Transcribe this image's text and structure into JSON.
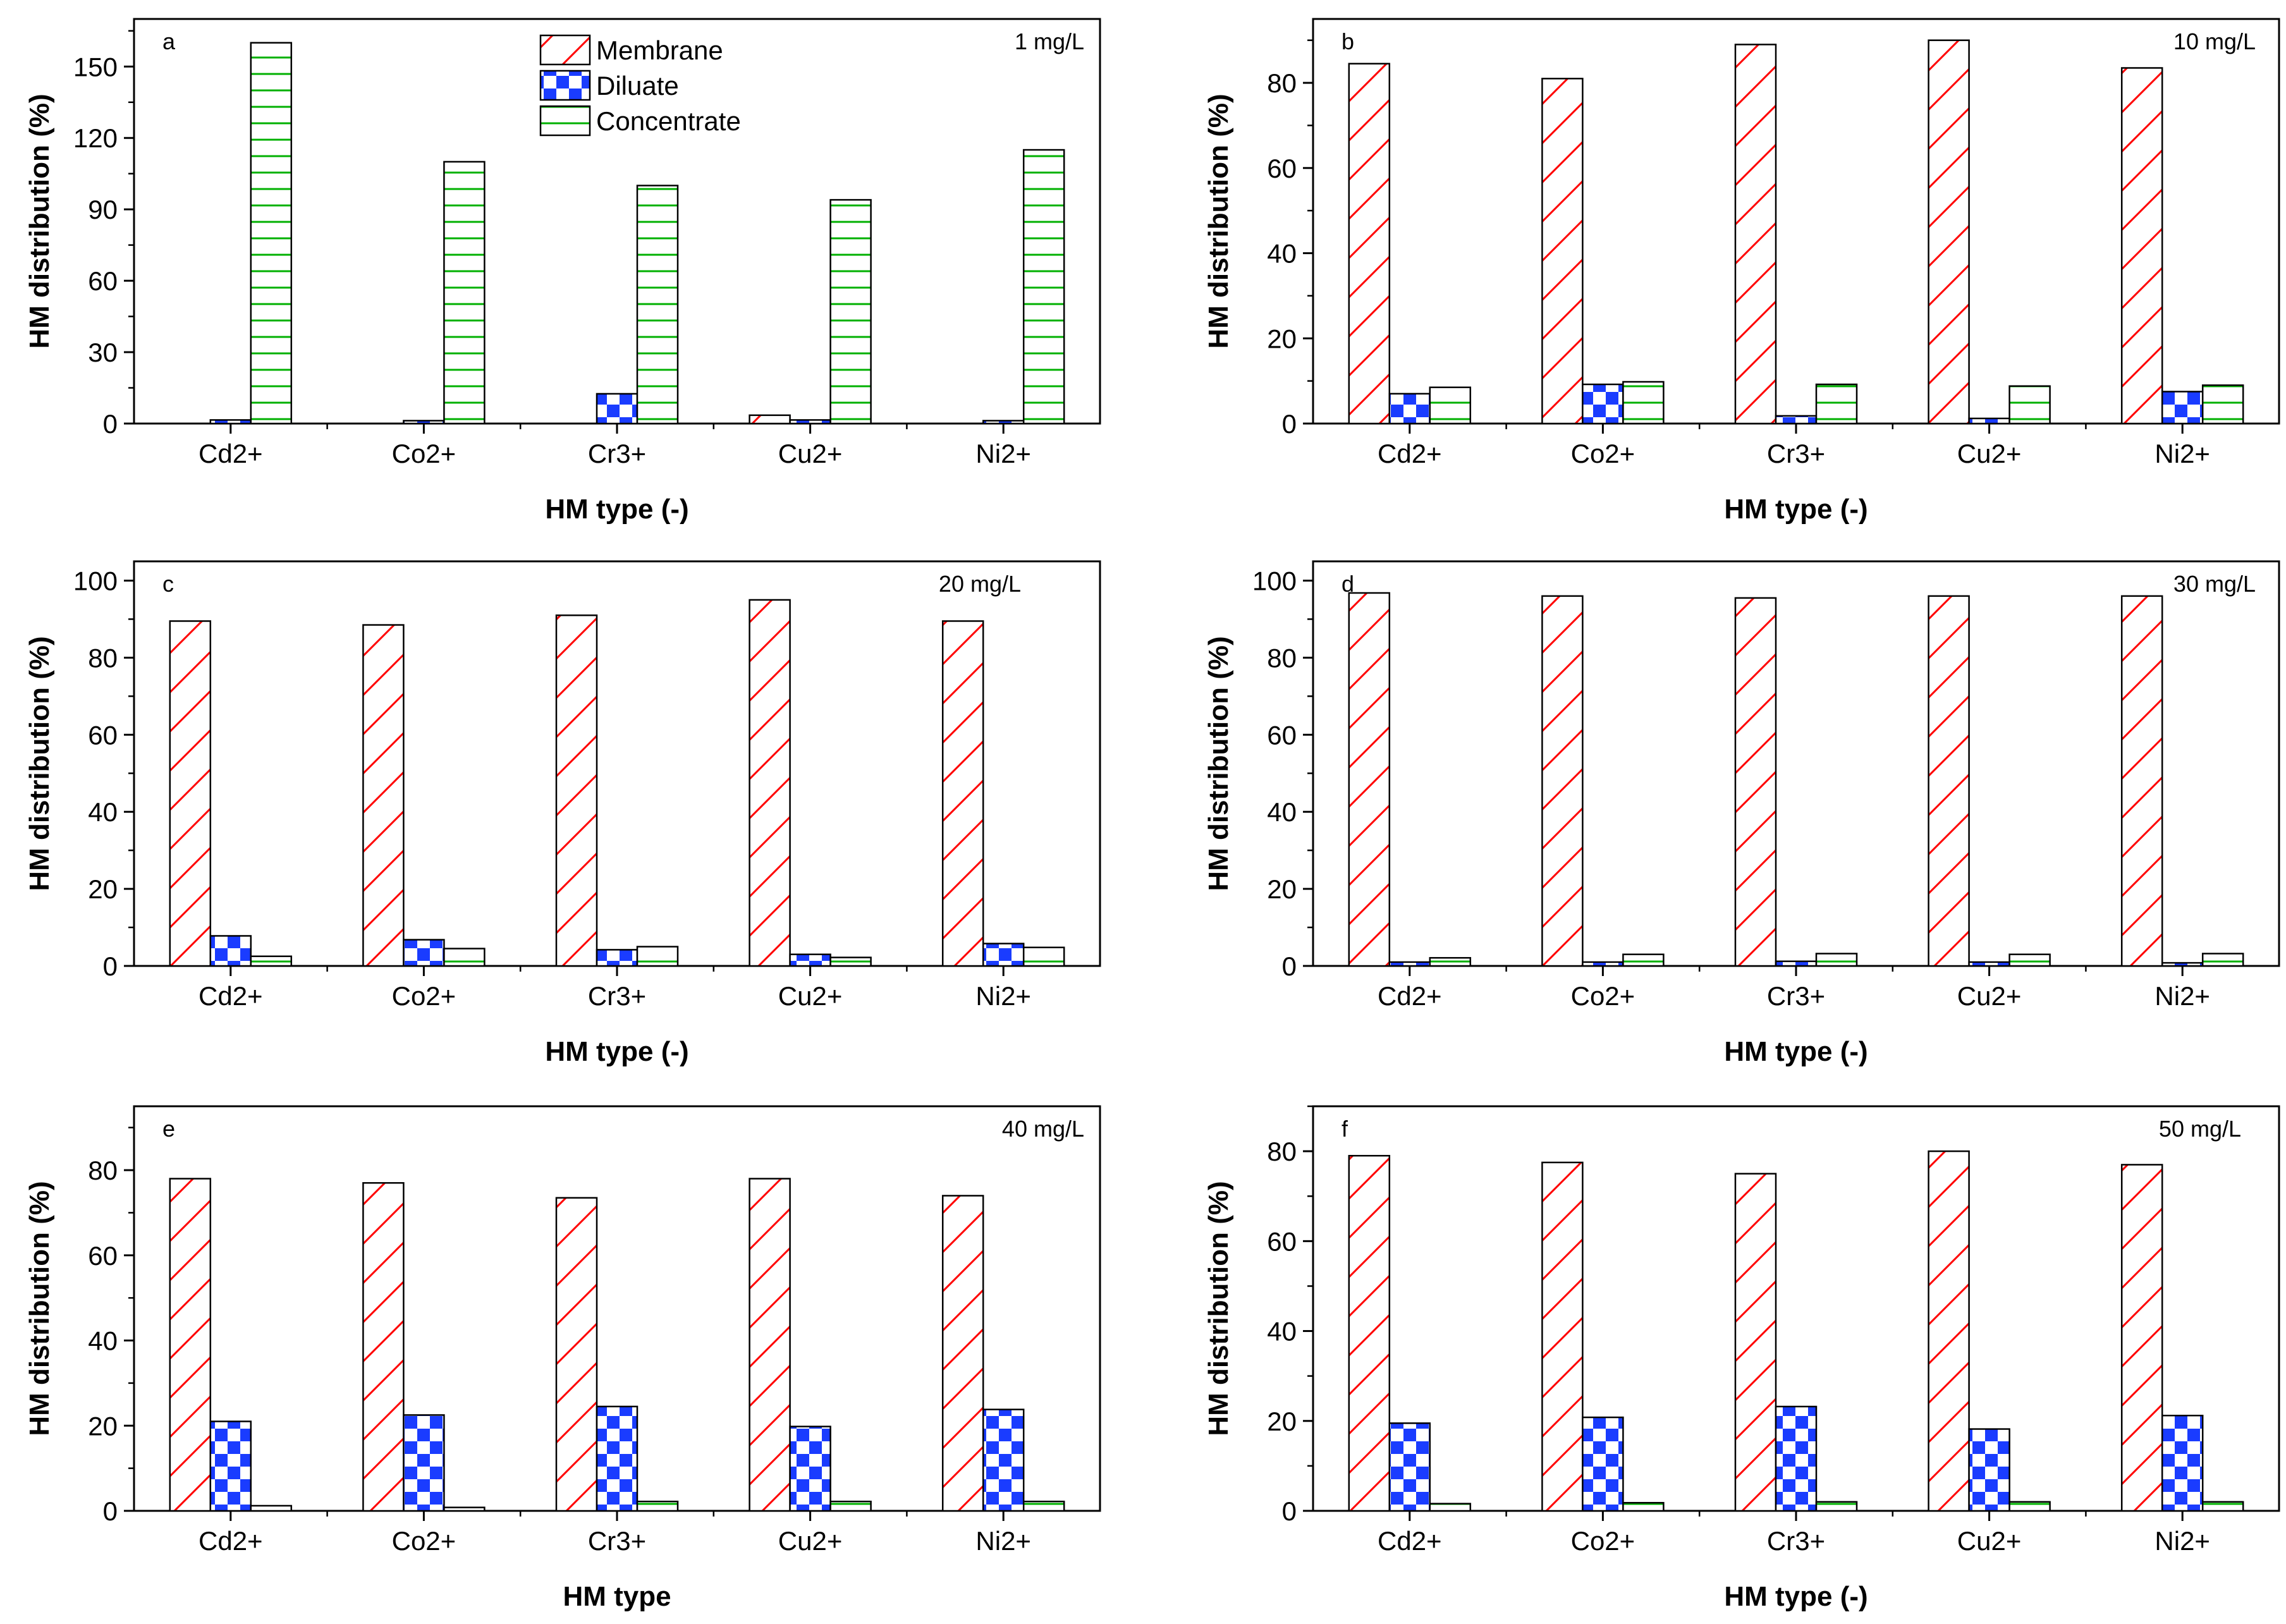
{
  "chart_data": [
    {
      "type": "bar",
      "panel": "a",
      "concentration": "1 mg/L",
      "xlabel": "HM type (-)",
      "ylabel": "HM distribution (%)",
      "categories": [
        "Cd2+",
        "Co2+",
        "Cr3+",
        "Cu2+",
        "Ni2+"
      ],
      "ylim": [
        0,
        170
      ],
      "yticks": [
        0,
        30,
        60,
        90,
        120,
        150
      ],
      "series": [
        {
          "name": "Membrane",
          "values": [
            0,
            0,
            0,
            3.5,
            0
          ]
        },
        {
          "name": "Diluate",
          "values": [
            1.5,
            1.2,
            12.5,
            1.5,
            1.2
          ]
        },
        {
          "name": "Concentrate",
          "values": [
            160,
            110,
            100,
            94,
            115
          ]
        }
      ]
    },
    {
      "type": "bar",
      "panel": "b",
      "concentration": "10 mg/L",
      "xlabel": "HM type (-)",
      "ylabel": "HM distribution (%)",
      "categories": [
        "Cd2+",
        "Co2+",
        "Cr3+",
        "Cu2+",
        "Ni2+"
      ],
      "ylim": [
        0,
        95
      ],
      "yticks": [
        0,
        20,
        40,
        60,
        80
      ],
      "series": [
        {
          "name": "Membrane",
          "values": [
            84.5,
            81,
            89,
            90,
            83.5
          ]
        },
        {
          "name": "Diluate",
          "values": [
            7,
            9.2,
            1.8,
            1.2,
            7.5
          ]
        },
        {
          "name": "Concentrate",
          "values": [
            8.5,
            9.8,
            9.2,
            8.8,
            9
          ]
        }
      ]
    },
    {
      "type": "bar",
      "panel": "c",
      "concentration": "20 mg/L",
      "xlabel": "HM type (-)",
      "ylabel": "HM distribution (%)",
      "categories": [
        "Cd2+",
        "Co2+",
        "Cr3+",
        "Cu2+",
        "Ni2+"
      ],
      "ylim": [
        0,
        105
      ],
      "yticks": [
        0,
        20,
        40,
        60,
        80,
        100
      ],
      "series": [
        {
          "name": "Membrane",
          "values": [
            89.5,
            88.5,
            91,
            95,
            89.5
          ]
        },
        {
          "name": "Diluate",
          "values": [
            7.8,
            6.8,
            4.2,
            3,
            5.8
          ]
        },
        {
          "name": "Concentrate",
          "values": [
            2.5,
            4.5,
            5,
            2.2,
            4.8
          ]
        }
      ]
    },
    {
      "type": "bar",
      "panel": "d",
      "concentration": "30 mg/L",
      "xlabel": "HM type (-)",
      "ylabel": "HM distribution (%)",
      "categories": [
        "Cd2+",
        "Co2+",
        "Cr3+",
        "Cu2+",
        "Ni2+"
      ],
      "ylim": [
        0,
        105
      ],
      "yticks": [
        0,
        20,
        40,
        60,
        80,
        100
      ],
      "series": [
        {
          "name": "Membrane",
          "values": [
            96.8,
            96,
            95.5,
            96,
            96
          ]
        },
        {
          "name": "Diluate",
          "values": [
            1,
            1,
            1.2,
            1,
            0.8
          ]
        },
        {
          "name": "Concentrate",
          "values": [
            2.1,
            3,
            3.2,
            3,
            3.2
          ]
        }
      ]
    },
    {
      "type": "bar",
      "panel": "e",
      "concentration": "40 mg/L",
      "xlabel": "HM type",
      "ylabel": "HM distribution (%)",
      "categories": [
        "Cd2+",
        "Co2+",
        "Cr3+",
        "Cu2+",
        "Ni2+"
      ],
      "ylim": [
        0,
        95
      ],
      "yticks": [
        0,
        20,
        40,
        60,
        80
      ],
      "series": [
        {
          "name": "Membrane",
          "values": [
            78,
            77,
            73.5,
            78,
            74
          ]
        },
        {
          "name": "Diluate",
          "values": [
            21,
            22.5,
            24.5,
            19.8,
            23.8
          ]
        },
        {
          "name": "Concentrate",
          "values": [
            1.2,
            0.8,
            2.2,
            2.2,
            2.2
          ]
        }
      ]
    },
    {
      "type": "bar",
      "panel": "f",
      "concentration": "50 mg/L",
      "xlabel": "HM type (-)",
      "ylabel": "HM distribution (%)",
      "categories": [
        "Cd2+",
        "Co2+",
        "Cr3+",
        "Cu2+",
        "Ni2+"
      ],
      "ylim": [
        0,
        90
      ],
      "yticks": [
        0,
        20,
        40,
        60,
        80
      ],
      "series": [
        {
          "name": "Membrane",
          "values": [
            79,
            77.5,
            75,
            80,
            77
          ]
        },
        {
          "name": "Diluate",
          "values": [
            19.5,
            20.8,
            23.2,
            18.2,
            21.2
          ]
        },
        {
          "name": "Concentrate",
          "values": [
            1.6,
            1.8,
            2,
            2,
            2
          ]
        }
      ]
    }
  ],
  "legend": {
    "placement": "top-center of panel a",
    "entries": [
      "Membrane",
      "Diluate",
      "Concentrate"
    ]
  },
  "colors": {
    "membrane": "#ff0000",
    "diluate": "#1a3cff",
    "concentrate": "#00b000",
    "axis": "#000000"
  }
}
